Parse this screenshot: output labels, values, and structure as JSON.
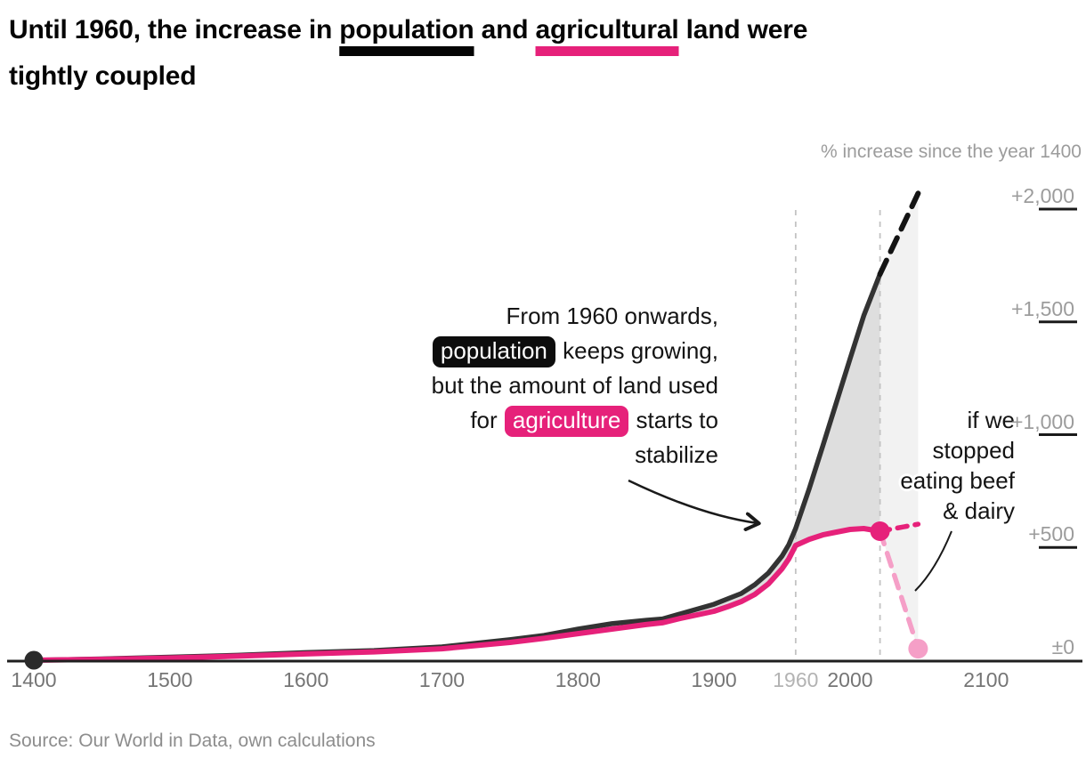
{
  "title": {
    "line1_pre": "Until 1960, the increase in ",
    "line1_u1": "population",
    "line1_mid": " and ",
    "line1_u2": "agricultural",
    "line1_post": " land were",
    "line2": "tightly coupled"
  },
  "axis_title": "% increase since the year 1400",
  "annotation_1960": {
    "line1": "From 1960 onwards,",
    "line2_pill": "population",
    "line2_rest": " keeps growing,",
    "line3": "but the amount of land used",
    "line4_pre": "for ",
    "line4_pill": "agriculture",
    "line4_rest": " starts to",
    "line5": "stabilize"
  },
  "annotation_scenario": {
    "line1": "if we",
    "line2": "stopped",
    "line3": "eating beef",
    "line4": "& dairy"
  },
  "source": "Source: Our World in Data, own calculations",
  "colors": {
    "population": "#333333",
    "population_projection": "#141414",
    "agriculture": "#e6217a",
    "agriculture_light": "#f59fc7",
    "wedge": "#dedede",
    "band": "#f2f2f2"
  },
  "chart_data": {
    "type": "line",
    "title": "Until 1960, the increase in population and agricultural land were tightly coupled",
    "ylabel": "% increase since the year 1400",
    "xlim": [
      1400,
      2150
    ],
    "ylim": [
      0,
      2100
    ],
    "grid": false,
    "legend": "none",
    "yticks": [
      {
        "v": 0,
        "label": "±0"
      },
      {
        "v": 500,
        "label": "+500"
      },
      {
        "v": 1000,
        "label": "+1,000"
      },
      {
        "v": 1500,
        "label": "+1,500"
      },
      {
        "v": 2000,
        "label": "+2,000"
      }
    ],
    "xticks": [
      {
        "year": 1400,
        "label": "1400",
        "muted": false
      },
      {
        "year": 1500,
        "label": "1500",
        "muted": false
      },
      {
        "year": 1600,
        "label": "1600",
        "muted": false
      },
      {
        "year": 1700,
        "label": "1700",
        "muted": false
      },
      {
        "year": 1800,
        "label": "1800",
        "muted": false
      },
      {
        "year": 1900,
        "label": "1900",
        "muted": false
      },
      {
        "year": 1960,
        "label": "1960",
        "muted": true
      },
      {
        "year": 2000,
        "label": "2000",
        "muted": false
      },
      {
        "year": 2100,
        "label": "2100",
        "muted": false
      }
    ],
    "vlines": [
      1960,
      2022
    ],
    "series": [
      {
        "name": "population",
        "style": "solid",
        "color": "#333333",
        "points": [
          [
            1400,
            0
          ],
          [
            1450,
            6
          ],
          [
            1500,
            14
          ],
          [
            1550,
            22
          ],
          [
            1600,
            34
          ],
          [
            1650,
            43
          ],
          [
            1700,
            59
          ],
          [
            1750,
            91
          ],
          [
            1775,
            110
          ],
          [
            1800,
            138
          ],
          [
            1825,
            162
          ],
          [
            1850,
            177
          ],
          [
            1862,
            183
          ],
          [
            1875,
            205
          ],
          [
            1900,
            248
          ],
          [
            1910,
            272
          ],
          [
            1920,
            296
          ],
          [
            1930,
            335
          ],
          [
            1940,
            387
          ],
          [
            1950,
            462
          ],
          [
            1955,
            513
          ],
          [
            1960,
            584
          ],
          [
            1970,
            761
          ],
          [
            1980,
            951
          ],
          [
            1990,
            1144
          ],
          [
            2000,
            1337
          ],
          [
            2010,
            1527
          ],
          [
            2022,
            1712
          ]
        ]
      },
      {
        "name": "population-projection",
        "style": "dashed",
        "color": "#141414",
        "points": [
          [
            2022,
            1712
          ],
          [
            2050,
            2070
          ]
        ]
      },
      {
        "name": "agricultural-land",
        "style": "solid",
        "color": "#e6217a",
        "points": [
          [
            1400,
            0
          ],
          [
            1450,
            4
          ],
          [
            1500,
            10
          ],
          [
            1550,
            18
          ],
          [
            1600,
            28
          ],
          [
            1650,
            37
          ],
          [
            1700,
            51
          ],
          [
            1750,
            79
          ],
          [
            1775,
            97
          ],
          [
            1800,
            118
          ],
          [
            1825,
            138
          ],
          [
            1850,
            158
          ],
          [
            1862,
            166
          ],
          [
            1875,
            185
          ],
          [
            1900,
            217
          ],
          [
            1910,
            237
          ],
          [
            1920,
            260
          ],
          [
            1930,
            292
          ],
          [
            1940,
            339
          ],
          [
            1950,
            406
          ],
          [
            1955,
            450
          ],
          [
            1960,
            509
          ],
          [
            1970,
            536
          ],
          [
            1980,
            556
          ],
          [
            1990,
            568
          ],
          [
            2000,
            580
          ],
          [
            2010,
            584
          ],
          [
            2022,
            572
          ]
        ]
      },
      {
        "name": "agricultural-land-projection",
        "style": "dashed",
        "color": "#e6217a",
        "points": [
          [
            2022,
            572
          ],
          [
            2050,
            603
          ]
        ]
      },
      {
        "name": "no-beef-dairy-scenario",
        "style": "dashed",
        "color": "#f59fc7",
        "points": [
          [
            2022,
            572
          ],
          [
            2050,
            51
          ]
        ]
      }
    ],
    "areas": [
      {
        "between": [
          "population",
          "agricultural-land"
        ],
        "color": "#dedede"
      },
      {
        "between": [
          "population-projection",
          "no-beef-dairy-scenario"
        ],
        "color": "#f2f2f2"
      }
    ],
    "markers": [
      {
        "year": 1400,
        "v": 0,
        "r": 10.5,
        "color": "#2b2b2b"
      },
      {
        "year": 2022,
        "v": 572,
        "r": 11,
        "color": "#e6217a"
      },
      {
        "year": 2050,
        "v": 51,
        "r": 11,
        "color": "#f59fc7"
      }
    ]
  }
}
